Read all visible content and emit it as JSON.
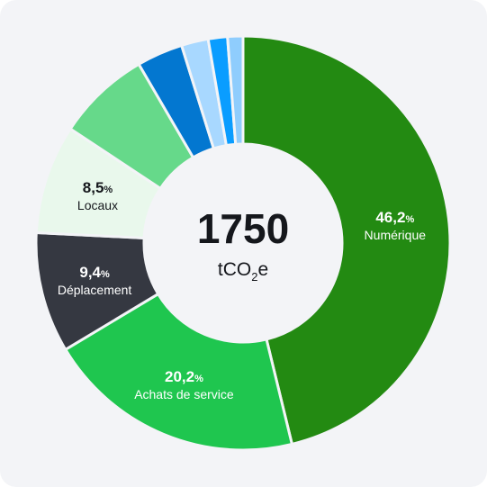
{
  "chart_data": {
    "type": "donut",
    "total": {
      "value": "1750",
      "unit_prefix": "tCO",
      "unit_sub": "2",
      "unit_suffix": "e"
    },
    "slices": [
      {
        "name": "Numérique",
        "value": 46.2,
        "pct_label": "46,2",
        "pct_unit": "%",
        "color": "#238a12",
        "text_color": "#ffffff"
      },
      {
        "name": "Achats de service",
        "value": 20.2,
        "pct_label": "20,2",
        "pct_unit": "%",
        "color": "#1fc64f",
        "text_color": "#ffffff"
      },
      {
        "name": "Déplacement",
        "value": 9.4,
        "pct_label": "9,4",
        "pct_unit": "%",
        "color": "#353841",
        "text_color": "#ffffff"
      },
      {
        "name": "Locaux",
        "value": 8.5,
        "pct_label": "8,5",
        "pct_unit": "%",
        "color": "#e9f8ec",
        "text_color": "#15171c"
      },
      {
        "name": "",
        "value": 7.3,
        "color": "#66d98a"
      },
      {
        "name": "",
        "value": 3.6,
        "color": "#0377d0"
      },
      {
        "name": "",
        "value": 2.1,
        "color": "#a8d8ff"
      },
      {
        "name": "",
        "value": 1.5,
        "color": "#0a9dff"
      },
      {
        "name": "",
        "value": 1.2,
        "color": "#8fcdfd"
      }
    ]
  }
}
